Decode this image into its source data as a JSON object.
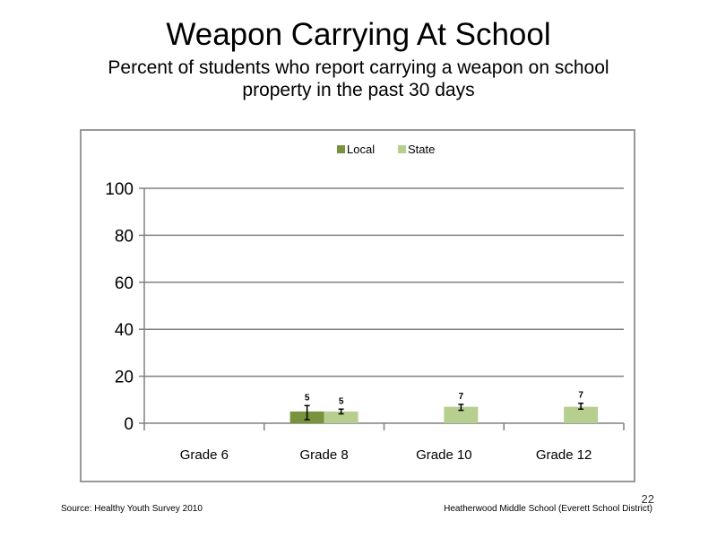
{
  "header": {
    "title": "Weapon Carrying At School",
    "subtitle": "Percent of students who report carrying a weapon on school property in the past 30 days"
  },
  "footer": {
    "source": "Source: Healthy Youth Survey 2010",
    "school": "Heatherwood Middle  School (Everett School District)",
    "page_number": "22"
  },
  "colors": {
    "local": "#77933C",
    "state": "#B6CF8F",
    "grid": "#808080"
  },
  "chart_data": {
    "type": "bar",
    "title": "",
    "xlabel": "",
    "ylabel": "",
    "ylim": [
      0,
      100
    ],
    "yticks": [
      0,
      20,
      40,
      60,
      80,
      100
    ],
    "grid": true,
    "legend_position": "top",
    "categories": [
      "Grade 6",
      "Grade 8",
      "Grade 10",
      "Grade 12"
    ],
    "series": [
      {
        "name": "Local",
        "values": [
          null,
          5,
          null,
          null
        ],
        "labels": [
          null,
          "5",
          null,
          null
        ],
        "error": [
          null,
          [
            1.5,
            7.5
          ],
          null,
          null
        ]
      },
      {
        "name": "State",
        "values": [
          null,
          5,
          7,
          7
        ],
        "labels": [
          null,
          "5",
          "7",
          "7"
        ],
        "error": [
          null,
          [
            4,
            6
          ],
          [
            5.5,
            8
          ],
          [
            6,
            8.5
          ]
        ]
      }
    ]
  }
}
